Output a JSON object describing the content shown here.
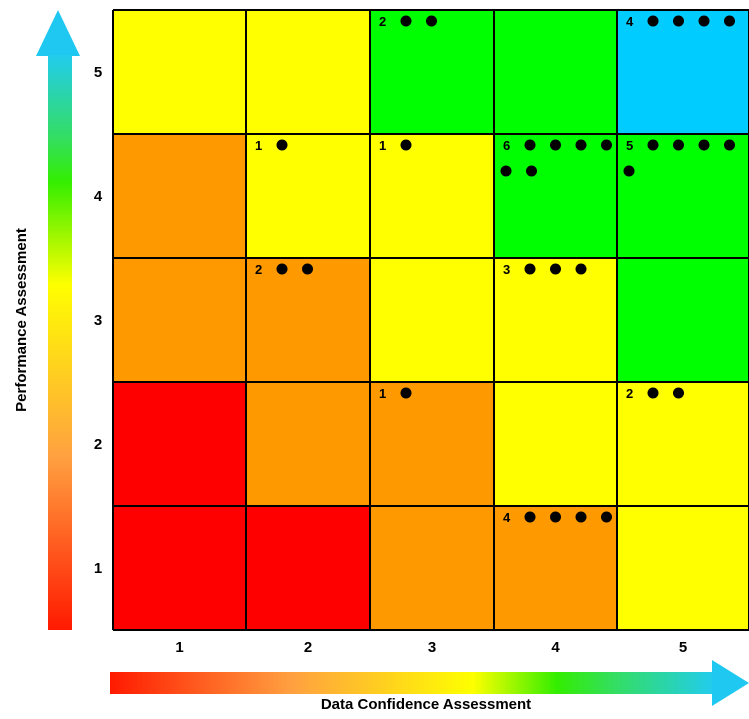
{
  "chart_data": {
    "type": "heatmap",
    "title": "",
    "xlabel": "Data Confidence Assessment",
    "ylabel": "Performance Assessment",
    "x_categories": [
      "1",
      "2",
      "3",
      "4",
      "5"
    ],
    "y_categories": [
      "1",
      "2",
      "3",
      "4",
      "5"
    ],
    "grid": true,
    "colors": {
      "red": "#ff0000",
      "orange": "#ff9900",
      "yellow": "#ffff00",
      "green": "#00ff00",
      "blue": "#00ccff"
    },
    "cells": [
      {
        "x": 1,
        "y": 5,
        "color": "yellow",
        "count": null
      },
      {
        "x": 2,
        "y": 5,
        "color": "yellow",
        "count": null
      },
      {
        "x": 3,
        "y": 5,
        "color": "green",
        "count": 2
      },
      {
        "x": 4,
        "y": 5,
        "color": "green",
        "count": null
      },
      {
        "x": 5,
        "y": 5,
        "color": "blue",
        "count": 4
      },
      {
        "x": 1,
        "y": 4,
        "color": "orange",
        "count": null
      },
      {
        "x": 2,
        "y": 4,
        "color": "yellow",
        "count": 1
      },
      {
        "x": 3,
        "y": 4,
        "color": "yellow",
        "count": 1
      },
      {
        "x": 4,
        "y": 4,
        "color": "green",
        "count": 6
      },
      {
        "x": 5,
        "y": 4,
        "color": "green",
        "count": 5
      },
      {
        "x": 1,
        "y": 3,
        "color": "orange",
        "count": null
      },
      {
        "x": 2,
        "y": 3,
        "color": "orange",
        "count": 2
      },
      {
        "x": 3,
        "y": 3,
        "color": "yellow",
        "count": null
      },
      {
        "x": 4,
        "y": 3,
        "color": "yellow",
        "count": 3
      },
      {
        "x": 5,
        "y": 3,
        "color": "green",
        "count": null
      },
      {
        "x": 1,
        "y": 2,
        "color": "red",
        "count": null
      },
      {
        "x": 2,
        "y": 2,
        "color": "orange",
        "count": null
      },
      {
        "x": 3,
        "y": 2,
        "color": "orange",
        "count": 1
      },
      {
        "x": 4,
        "y": 2,
        "color": "yellow",
        "count": null
      },
      {
        "x": 5,
        "y": 2,
        "color": "yellow",
        "count": 2
      },
      {
        "x": 1,
        "y": 1,
        "color": "red",
        "count": null
      },
      {
        "x": 2,
        "y": 1,
        "color": "red",
        "count": null
      },
      {
        "x": 3,
        "y": 1,
        "color": "orange",
        "count": null
      },
      {
        "x": 4,
        "y": 1,
        "color": "orange",
        "count": 4
      },
      {
        "x": 5,
        "y": 1,
        "color": "yellow",
        "count": null
      }
    ]
  }
}
